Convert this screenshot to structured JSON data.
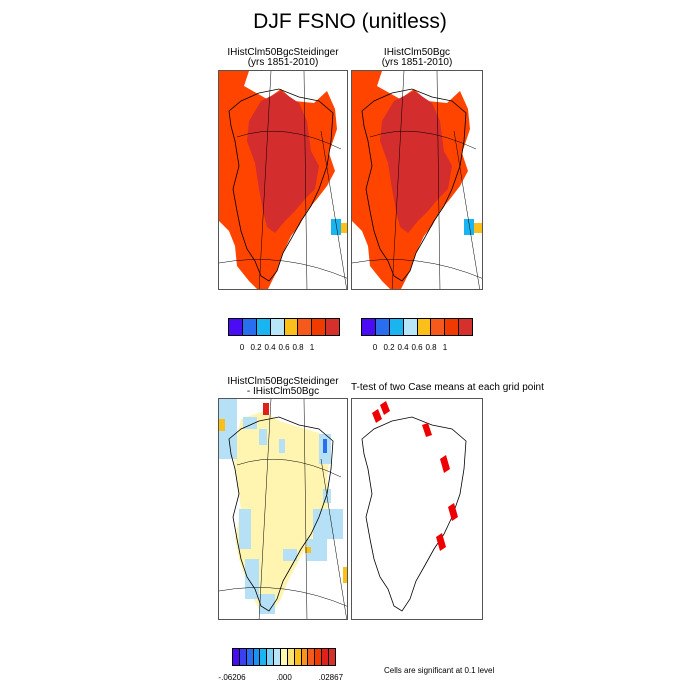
{
  "title": "DJF FSNO (unitless)",
  "panels": {
    "case1": {
      "name": "IHistClm50BgcSteidinger",
      "years": "(yrs 1851-2010)"
    },
    "case2": {
      "name": "IHistClm50Bgc",
      "years": "(yrs 1851-2010)"
    },
    "diff": {
      "line1": "IHistClm50BgcSteidinger",
      "line2": "- IHistClm50Bgc"
    },
    "ttest": {
      "title": "T-test of two Case means at each grid point"
    }
  },
  "colorbar_main": {
    "colors": [
      "#4a0cf2",
      "#2a6ef0",
      "#1ab5f0",
      "#b8e6f8",
      "#fbbf1a",
      "#f55a1c",
      "#f03a00",
      "#d6302c"
    ],
    "labels": [
      "0",
      "0.2",
      "0.4",
      "0.6",
      "0.8",
      "1"
    ]
  },
  "colorbar_diff": {
    "colors": [
      "#4a0cf2",
      "#3a40f2",
      "#2a6ef0",
      "#1e90f0",
      "#1ab5f0",
      "#7fd0f5",
      "#b8e6f8",
      "#fff7b5",
      "#fde27a",
      "#fbbf1a",
      "#f9931b",
      "#f55a1c",
      "#f03a00",
      "#e0201a",
      "#d6302c"
    ],
    "labels": [
      "-.06206",
      ".000",
      ".02867"
    ]
  },
  "significance_note": "Cells are significant at 0.1 level",
  "colors": {
    "snow_high": "#d32d2d",
    "snow_mid": "#ff4400",
    "diff_positive": "#fff4b0",
    "diff_negative": "#b5e0f5",
    "significant": "#ee0000"
  }
}
